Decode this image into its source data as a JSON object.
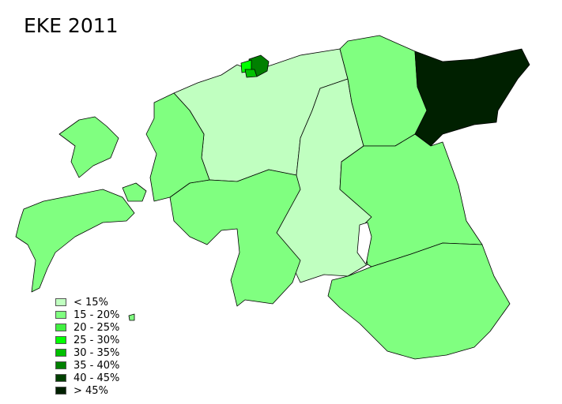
{
  "title": "EKE 2011",
  "legend": [
    {
      "label": "< 15%",
      "color": "#c0ffc0"
    },
    {
      "label": "15 - 20%",
      "color": "#80ff80"
    },
    {
      "label": "20 - 25%",
      "color": "#40f040"
    },
    {
      "label": "25 - 30%",
      "color": "#00ff00"
    },
    {
      "label": "30 - 35%",
      "color": "#00c000"
    },
    {
      "label": "35 - 40%",
      "color": "#008000"
    },
    {
      "label": "40 - 45%",
      "color": "#004000"
    },
    {
      "label": "> 45%",
      "color": "#002000"
    }
  ],
  "regions": [
    {
      "id": "harju",
      "class": 0
    },
    {
      "id": "jarva",
      "class": 0
    },
    {
      "id": "laane-viru",
      "class": 1
    },
    {
      "id": "ida-viru",
      "class": 7
    },
    {
      "id": "tartu-jogeva",
      "class": 1
    },
    {
      "id": "south-east",
      "class": 1
    },
    {
      "id": "parnu",
      "class": 1
    },
    {
      "id": "laane",
      "class": 1
    },
    {
      "id": "saaremaa",
      "class": 1
    },
    {
      "id": "hiiumaa",
      "class": 1
    },
    {
      "id": "muhu",
      "class": 1
    },
    {
      "id": "tallinn-a",
      "class": 5
    },
    {
      "id": "tallinn-b",
      "class": 3
    },
    {
      "id": "tallinn-c",
      "class": 4
    }
  ]
}
